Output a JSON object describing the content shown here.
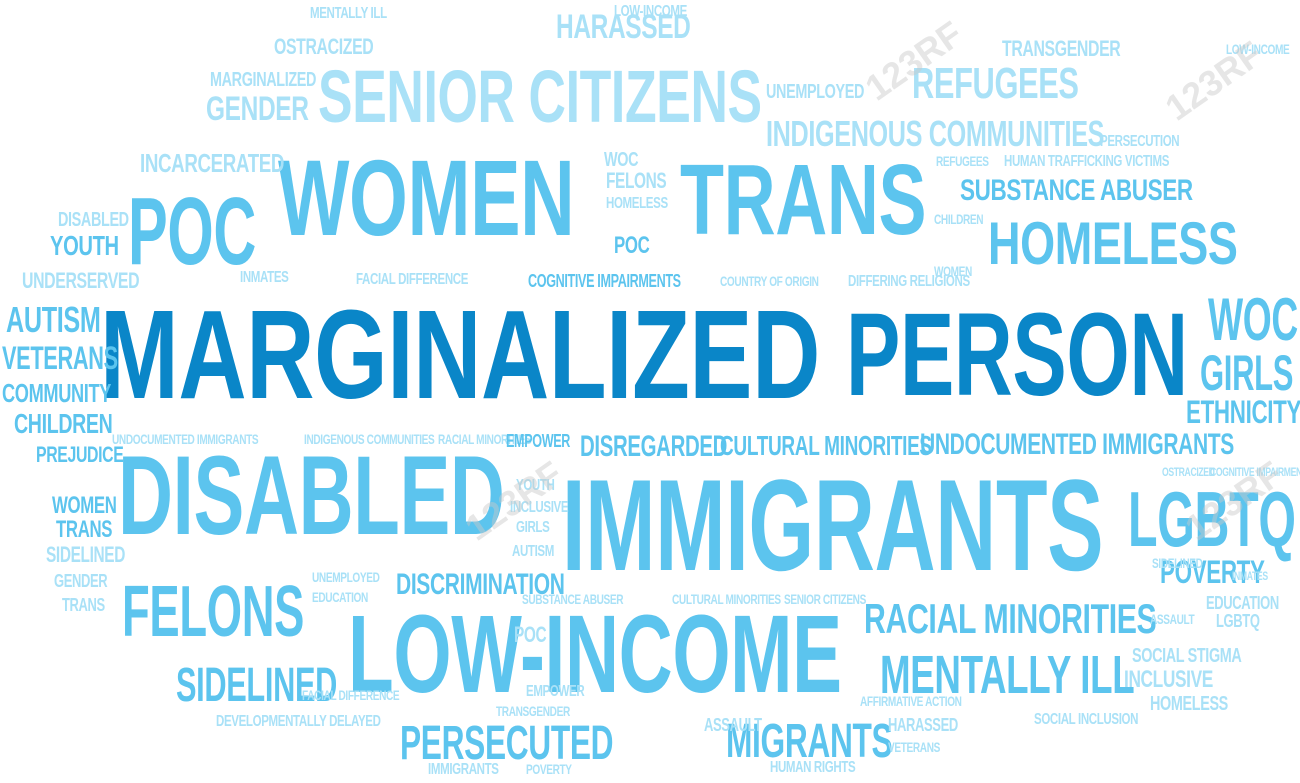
{
  "words": {
    "marginalized": "MARGINALIZED",
    "person": "PERSON",
    "immigrants": "IMMIGRANTS",
    "disabled": "DISABLED",
    "low_income": "LOW-INCOME",
    "women": "WOMEN",
    "trans": "TRANS",
    "poc": "POC",
    "senior_citizens": "SENIOR CITIZENS",
    "homeless": "HOMELESS",
    "felons": "FELONS",
    "lgbtq": "LGBTQ",
    "racial_minorities": "RACIAL MINORITIES",
    "mentally_ill": "MENTALLY ILL",
    "migrants": "MIGRANTS",
    "persecuted": "PERSECUTED",
    "sidelined": "SIDELINED",
    "refugees": "REFUGEES",
    "indigenous_communities": "INDIGENOUS COMMUNITIES",
    "substance_abuser": "SUBSTANCE ABUSER",
    "gender": "GENDER",
    "incarcerated": "INCARCERATED",
    "undocumented_immigrants": "UNDOCUMENTED IMMIGRANTS",
    "cultural_minorities": "CULTURAL MINORITIES",
    "disregarded": "DISREGARDED",
    "woc": "WOC",
    "girls": "GIRLS",
    "ethnicity": "ETHNICITY",
    "autism": "AUTISM",
    "veterans": "VETERANS",
    "community": "COMMUNITY",
    "children": "CHILDREN",
    "prejudice": "PREJUDICE",
    "youth": "YOUTH",
    "underserved": "UNDERSERVED",
    "discrimination": "DISCRIMINATION",
    "poverty": "POVERTY",
    "harassed": "HARASSED",
    "ostracized": "OSTRACIZED",
    "marginalized_small": "MARGINALIZED",
    "transgender": "TRANSGENDER",
    "unemployed": "UNEMPLOYED",
    "cognitive_impairments": "COGNITIVE IMPAIRMENTS",
    "country_of_origin": "COUNTRY OF ORIGIN",
    "differing_religions": "DIFFERING RELIGIONS",
    "facial_difference": "FACIAL DIFFERENCE",
    "inmates": "INMATES",
    "empower": "EMPOWER",
    "education": "EDUCATION",
    "social_stigma": "SOCIAL STIGMA",
    "inclusive": "INCLUSIVE",
    "social_inclusion": "SOCIAL INCLUSION",
    "developmentally_delayed": "DEVELOPMENTALLY DELAYED",
    "assault": "ASSAULT",
    "human_rights": "HUMAN RIGHTS",
    "human_trafficking_victims": "HUMAN TRAFFICKING VICTIMS",
    "affirmative_action": "AFFIRMATIVE ACTION",
    "persecution": "PERSECUTION",
    "mentally_ill_small": "MENTALLY ILL",
    "low_income_small": "LOW-INCOME",
    "homeless_small": "HOMELESS",
    "senior_citizens_small": "SENIOR CITIZENS",
    "racial_minorities_small": "RACIAL MINORITIES",
    "indigenous_small": "INDIGENOUS COMMUNITIES",
    "substance_small": "SUBSTANCE ABUSER",
    "cultural_small": "CULTURAL MINORITIES"
  },
  "colors": {
    "dark": "#0a86c8",
    "medium": "#22a7e0",
    "light": "#5cc4ee",
    "pale": "#a9e1f7",
    "faint": "#c9ecfa",
    "background": "#ffffff"
  },
  "watermark": "123RF"
}
